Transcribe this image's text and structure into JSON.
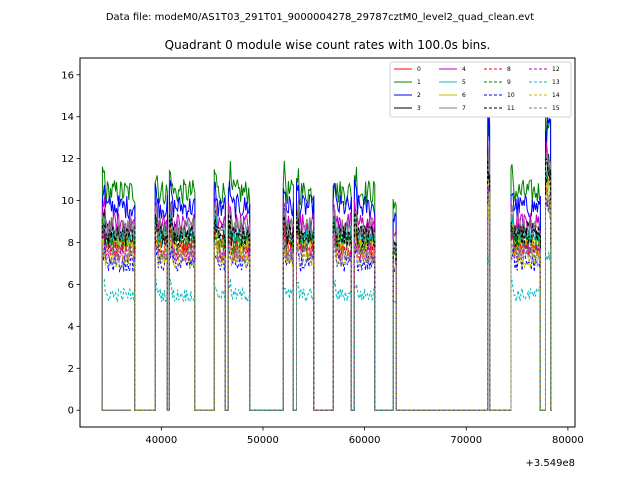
{
  "suptitle": "Data file: modeM0/AS1T03_291T01_9000004278_29787cztM0_level2_quad_clean.evt",
  "chart_data": {
    "type": "line",
    "title": "Quadrant 0 module wise count rates with 100.0s bins.",
    "xlabel": "",
    "ylabel": "",
    "x_offset_label": "+3.549e8",
    "xlim": [
      32000,
      80700
    ],
    "ylim": [
      -0.8,
      16.8
    ],
    "xticks": [
      40000,
      50000,
      60000,
      70000,
      80000
    ],
    "xtick_labels": [
      "40000",
      "50000",
      "60000",
      "70000",
      "80000"
    ],
    "yticks": [
      0,
      2,
      4,
      6,
      8,
      10,
      12,
      14,
      16
    ],
    "ytick_labels": [
      "0",
      "2",
      "4",
      "6",
      "8",
      "10",
      "12",
      "14",
      "16"
    ],
    "legend_position": "upper right",
    "legend_columns": 4,
    "active_segments": [
      [
        34200,
        37400
      ],
      [
        39400,
        40600
      ],
      [
        40800,
        43300
      ],
      [
        45200,
        46300
      ],
      [
        46600,
        48700
      ],
      [
        52000,
        53000
      ],
      [
        53300,
        55000
      ],
      [
        56900,
        58700
      ],
      [
        59000,
        61000
      ],
      [
        62800,
        63100
      ],
      [
        72100,
        72300
      ],
      [
        74400,
        77300
      ],
      [
        77800,
        78300
      ]
    ],
    "series": [
      {
        "name": "0",
        "color": "#ff0000",
        "style": "solid",
        "level": 8.0
      },
      {
        "name": "1",
        "color": "#008000",
        "style": "solid",
        "level": 10.4
      },
      {
        "name": "2",
        "color": "#0000ff",
        "style": "solid",
        "level": 9.7
      },
      {
        "name": "3",
        "color": "#000000",
        "style": "solid",
        "level": 8.5
      },
      {
        "name": "4",
        "color": "#bf00bf",
        "style": "solid",
        "level": 8.9
      },
      {
        "name": "5",
        "color": "#00bfbf",
        "style": "solid",
        "level": 8.3
      },
      {
        "name": "6",
        "color": "#bfbf00",
        "style": "solid",
        "level": 7.8
      },
      {
        "name": "7",
        "color": "#808080",
        "style": "solid",
        "level": 8.7
      },
      {
        "name": "8",
        "color": "#ff0000",
        "style": "dashed",
        "level": 7.6
      },
      {
        "name": "9",
        "color": "#008000",
        "style": "dashed",
        "level": 8.0
      },
      {
        "name": "10",
        "color": "#0000ff",
        "style": "dashed",
        "level": 7.0
      },
      {
        "name": "11",
        "color": "#000000",
        "style": "dashed",
        "level": 8.3
      },
      {
        "name": "12",
        "color": "#bf00bf",
        "style": "dashed",
        "level": 7.5
      },
      {
        "name": "13",
        "color": "#00bfbf",
        "style": "dashed",
        "level": 5.5
      },
      {
        "name": "14",
        "color": "#bfbf00",
        "style": "dashed",
        "level": 7.2
      },
      {
        "name": "15",
        "color": "#808080",
        "style": "dashed",
        "level": 7.4
      }
    ]
  }
}
